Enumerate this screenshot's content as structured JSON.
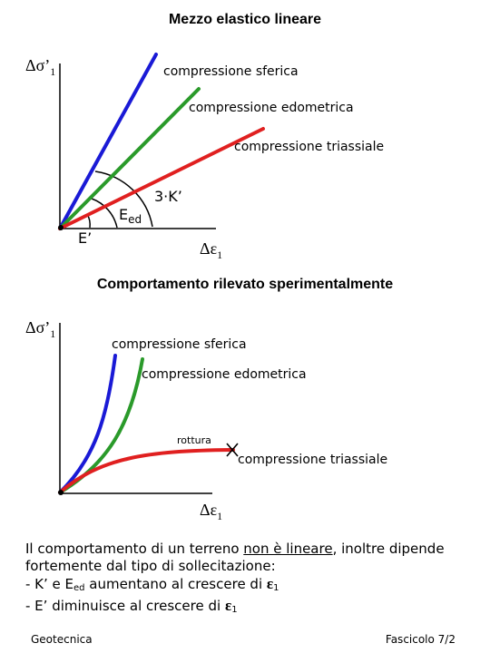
{
  "diagram1": {
    "title": "Mezzo elastico lineare",
    "ylabel_main": "Δσ’",
    "ylabel_sub": "1",
    "xlabel_main": "Δε",
    "xlabel_sub": "1",
    "lines": [
      {
        "label": "compressione sferica",
        "color": "#1a1ad6"
      },
      {
        "label": "compressione edometrica",
        "color": "#2a9a2a"
      },
      {
        "label": "compressione triassiale",
        "color": "#e02020"
      }
    ],
    "arc_labels": {
      "k": "3·K’",
      "eed_main": "E",
      "eed_sub": "ed",
      "e": "E’"
    }
  },
  "diagram2": {
    "title": "Comportamento rilevato sperimentalmente",
    "ylabel_main": "Δσ’",
    "ylabel_sub": "1",
    "xlabel_main": "Δε",
    "xlabel_sub": "1",
    "lines": [
      {
        "label": "compressione sferica",
        "color": "#1a1ad6"
      },
      {
        "label": "compressione edometrica",
        "color": "#2a9a2a"
      },
      {
        "label": "compressione triassiale",
        "color": "#e02020"
      }
    ],
    "failure_label": "rottura"
  },
  "text": {
    "line1_a": "Il comportamento di un terreno ",
    "line1_b": "non è lineare",
    "line1_c": ", inoltre dipende",
    "line2": "fortemente dal tipo di sollecitazione:",
    "line3_a": "- K’ e E",
    "line3_sub": "ed",
    "line3_b": " aumentano al crescere di ",
    "line3_eps": "ε",
    "line3_eps_sub": "1",
    "line4_a": "- E’ diminuisce al crescere di ",
    "line4_eps": "ε",
    "line4_eps_sub": "1"
  },
  "footer": {
    "left": "Geotecnica",
    "right": "Fascicolo 7/2"
  }
}
